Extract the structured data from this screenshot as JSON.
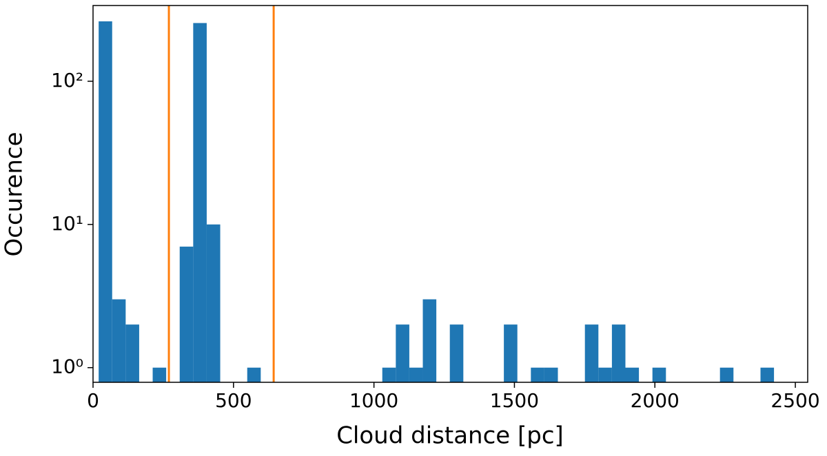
{
  "chart_data": {
    "type": "histogram",
    "x_label": "Cloud distance [pc]",
    "y_label": "Occurence",
    "bins": [
      20,
      68.08,
      116.16,
      164.24,
      212.32,
      260.4,
      308.48,
      356.56,
      404.64,
      452.72,
      500.8,
      548.88,
      596.96,
      645.04,
      693.12,
      741.2,
      789.28,
      837.36,
      885.44,
      933.52,
      981.6,
      1029.68,
      1077.76,
      1125.84,
      1173.92,
      1222,
      1270.08,
      1318.16,
      1366.24,
      1414.32,
      1462.4,
      1510.48,
      1558.56,
      1606.64,
      1654.72,
      1702.8,
      1750.88,
      1798.96,
      1847.04,
      1895.12,
      1943.2,
      1991.28,
      2039.36,
      2087.44,
      2135.52,
      2183.6,
      2231.68,
      2279.76,
      2327.84,
      2375.92,
      2424
    ],
    "values": [
      262,
      3,
      2,
      0,
      1,
      0,
      7,
      255,
      10,
      0,
      0,
      1,
      0,
      0,
      0,
      0,
      0,
      0,
      0,
      0,
      0,
      1,
      2,
      1,
      3,
      0,
      2,
      0,
      0,
      0,
      2,
      0,
      1,
      1,
      0,
      0,
      2,
      1,
      2,
      1,
      0,
      1,
      0,
      0,
      0,
      0,
      1,
      0,
      0,
      1
    ],
    "color": "#1f77b4",
    "vlines": [
      270,
      643
    ],
    "vline_color": "#ff7f0e",
    "xlim": [
      0,
      2544
    ],
    "xticks": [
      0,
      500,
      1000,
      1500,
      2000,
      2500
    ],
    "ylim": [
      0.79,
      338
    ],
    "yscale": "log",
    "yticks": [
      {
        "value": 1,
        "label": "10⁰"
      },
      {
        "value": 10,
        "label": "10¹"
      },
      {
        "value": 100,
        "label": "10²"
      }
    ]
  }
}
